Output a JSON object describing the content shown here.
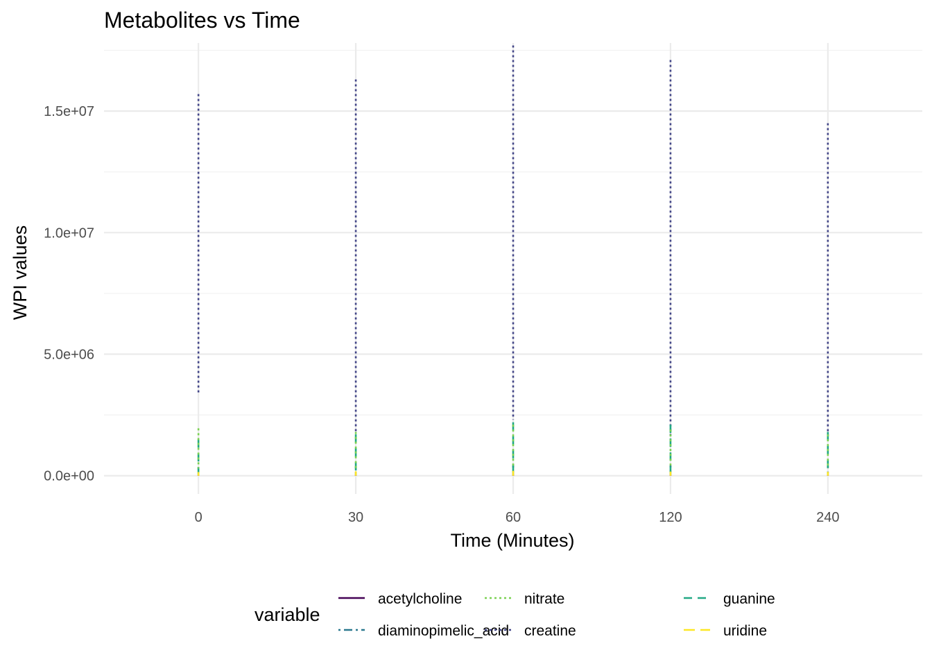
{
  "chart_data": {
    "type": "line",
    "title": "Metabolites vs Time",
    "xlabel": "Time (Minutes)",
    "ylabel": "WPI values",
    "categories": [
      "0",
      "30",
      "60",
      "120",
      "240"
    ],
    "ylim": [
      -750000,
      17800000
    ],
    "yticks": [
      0,
      5000000,
      10000000,
      15000000
    ],
    "ytick_labels": [
      "0.0e+00",
      "5.0e+06",
      "1.0e+07",
      "1.5e+07"
    ],
    "grid": true,
    "legend": {
      "title": "variable",
      "position": "bottom",
      "entries": [
        "acetylcholine",
        "diaminopimelic_acid",
        "nitrate",
        "creatine",
        "guanine",
        "uridine"
      ]
    },
    "series": [
      {
        "name": "acetylcholine",
        "color": "#440154",
        "linetype": "solid",
        "ranges": [
          [
            0,
            40000
          ],
          [
            0,
            45000
          ],
          [
            0,
            50000
          ],
          [
            0,
            45000
          ],
          [
            0,
            40000
          ]
        ]
      },
      {
        "name": "creatine",
        "color": "#414487",
        "linetype": "dotted",
        "ranges": [
          [
            3400000,
            15700000
          ],
          [
            1800000,
            16300000
          ],
          [
            2300000,
            17700000
          ],
          [
            1500000,
            17100000
          ],
          [
            1500000,
            14500000
          ]
        ]
      },
      {
        "name": "diaminopimelic_acid",
        "color": "#2A788E",
        "linetype": "dotdash",
        "ranges": [
          [
            50000,
            350000
          ],
          [
            60000,
            380000
          ],
          [
            60000,
            420000
          ],
          [
            60000,
            430000
          ],
          [
            60000,
            400000
          ]
        ]
      },
      {
        "name": "guanine",
        "color": "#22A884",
        "linetype": "dashed",
        "ranges": [
          [
            100000,
            1500000
          ],
          [
            150000,
            1700000
          ],
          [
            150000,
            2200000
          ],
          [
            150000,
            2100000
          ],
          [
            150000,
            1800000
          ]
        ]
      },
      {
        "name": "nitrate",
        "color": "#7AD151",
        "linetype": "dotted",
        "ranges": [
          [
            300000,
            1950000
          ],
          [
            300000,
            1800000
          ],
          [
            300000,
            2100000
          ],
          [
            300000,
            1900000
          ],
          [
            300000,
            1700000
          ]
        ]
      },
      {
        "name": "uridine",
        "color": "#FDE725",
        "linetype": "longdash",
        "ranges": [
          [
            0,
            150000
          ],
          [
            0,
            180000
          ],
          [
            0,
            200000
          ],
          [
            0,
            170000
          ],
          [
            0,
            160000
          ]
        ]
      }
    ]
  }
}
